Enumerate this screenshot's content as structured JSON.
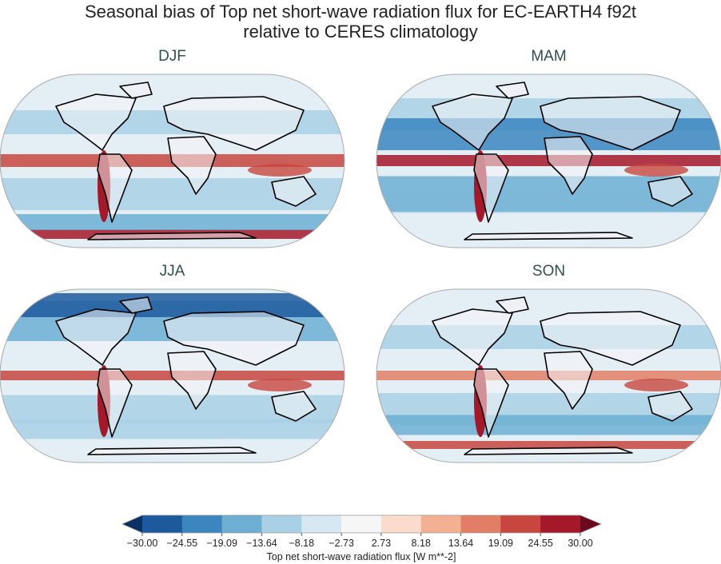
{
  "title": {
    "line1": "Seasonal bias of Top net short-wave radiation flux for EC-EARTH4 f92t",
    "line2": "relative to CERES climatology"
  },
  "panels": [
    {
      "label": "DJF"
    },
    {
      "label": "MAM"
    },
    {
      "label": "JJA"
    },
    {
      "label": "SON"
    }
  ],
  "colorbar": {
    "label": "Top net short-wave radiation flux [W m**-2]",
    "ticks": [
      "−30.00",
      "−24.55",
      "−19.09",
      "−13.64",
      "−8.18",
      "−2.73",
      "2.73",
      "8.18",
      "13.64",
      "19.09",
      "24.55",
      "30.00"
    ],
    "colors": [
      "#1d5a9c",
      "#3b86bf",
      "#6cafd3",
      "#a9d0e5",
      "#d8e8f2",
      "#f6f6f6",
      "#fbdccc",
      "#f4b092",
      "#e27e66",
      "#c7463f",
      "#a41829"
    ],
    "under_color": "#0a3064",
    "over_color": "#6b0a1f",
    "extend": "both"
  }
}
